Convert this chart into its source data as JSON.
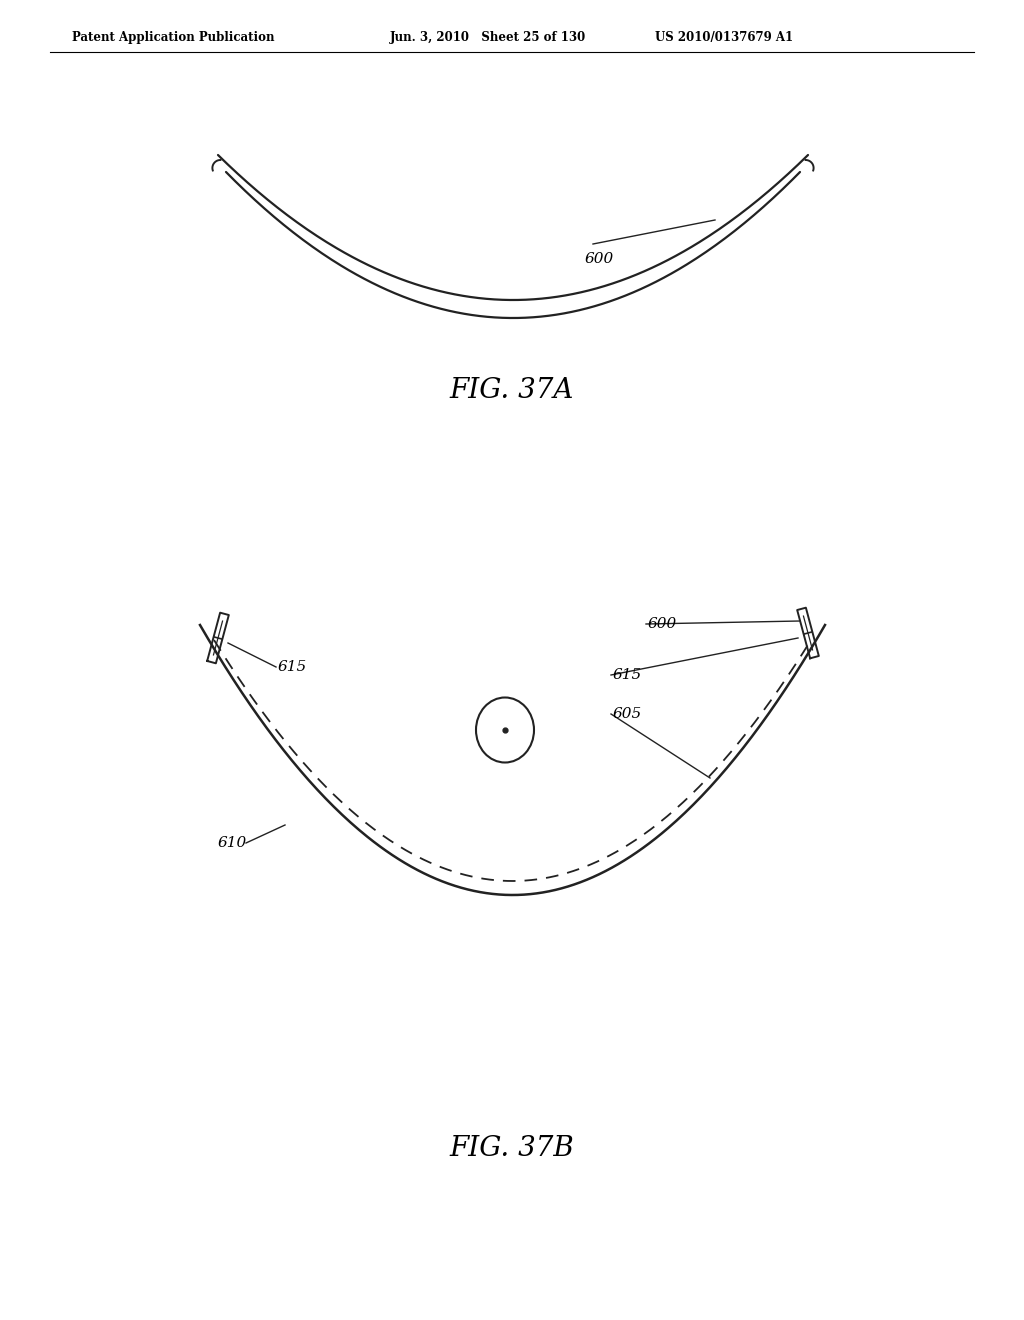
{
  "bg_color": "#ffffff",
  "text_color": "#000000",
  "header_left": "Patent Application Publication",
  "header_mid": "Jun. 3, 2010   Sheet 25 of 130",
  "header_right": "US 2010/0137679 A1",
  "fig37a_label": "FIG. 37A",
  "fig37b_label": "FIG. 37B",
  "label_600_a": "600",
  "label_600_b": "600",
  "label_605": "605",
  "label_610": "610",
  "label_615_left": "615",
  "label_615_right": "615"
}
